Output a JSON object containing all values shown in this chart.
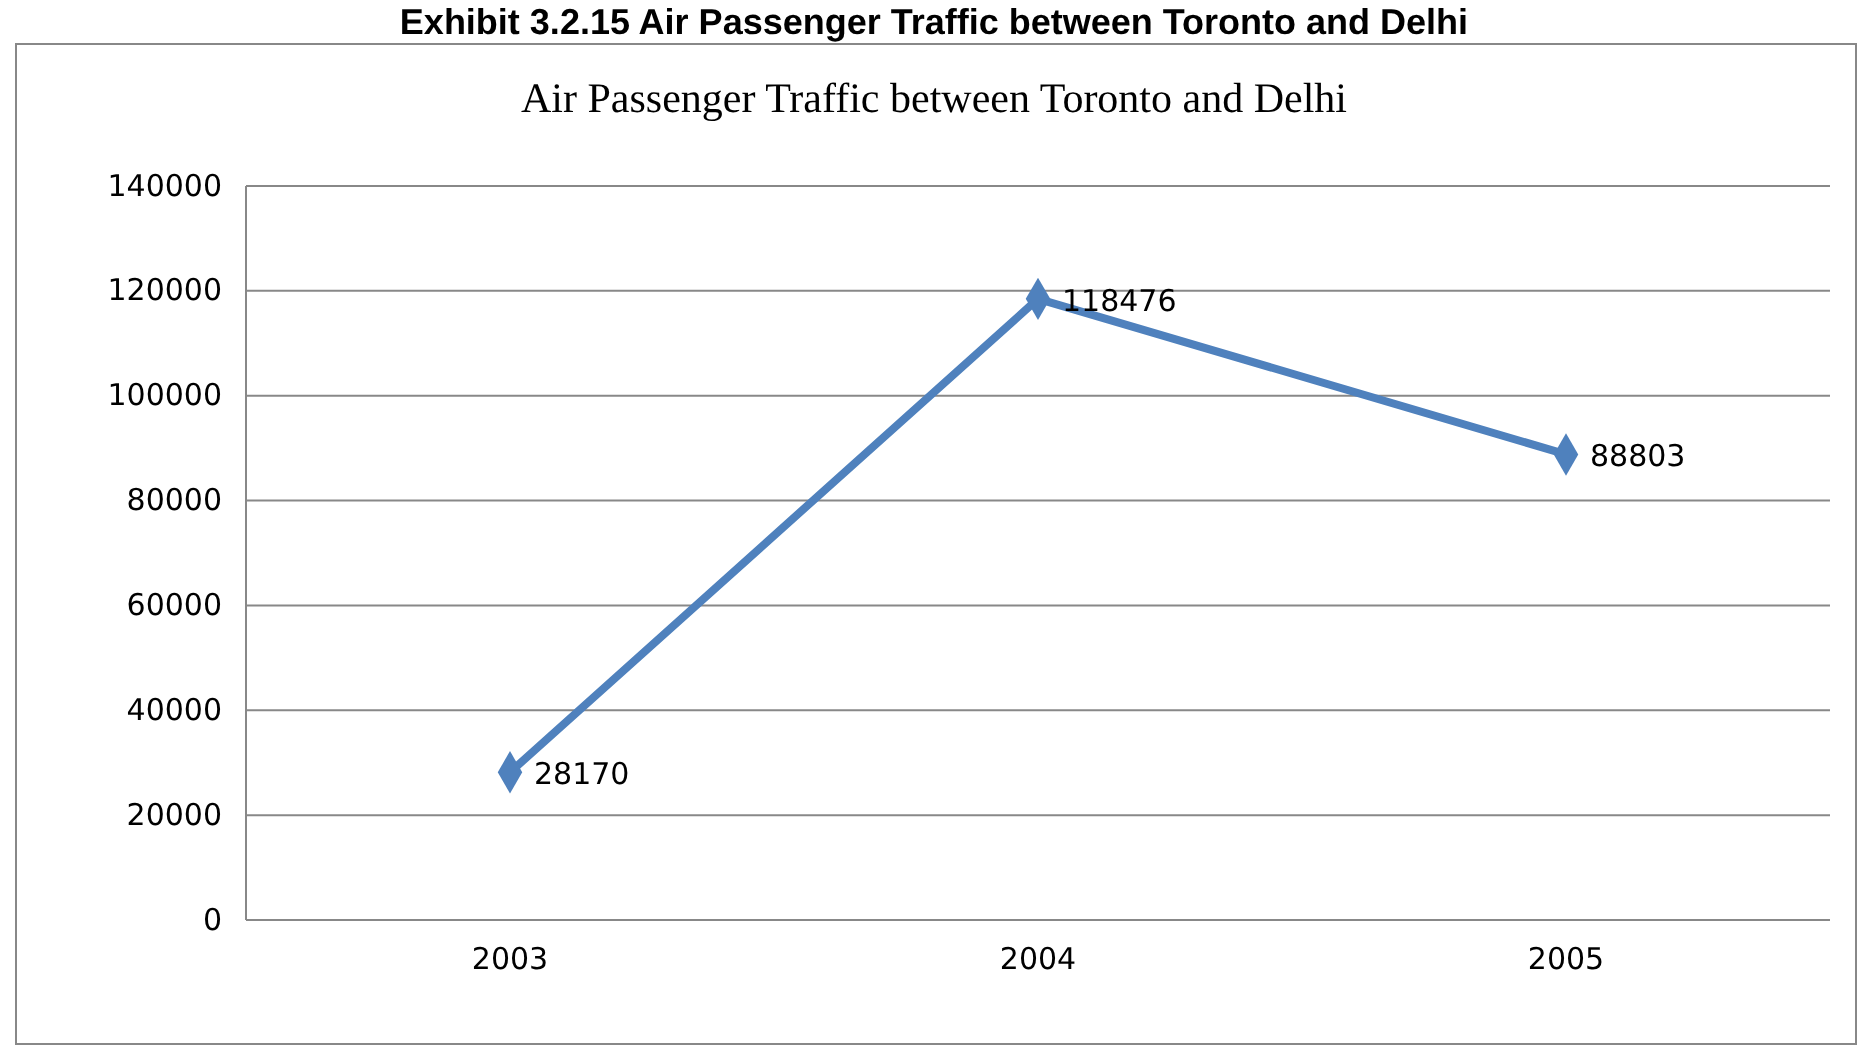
{
  "chart_data": {
    "type": "line",
    "title": "Exhibit 3.2.15 Air Passenger Traffic between Toronto and Delhi",
    "subtitle": "Air Passenger Traffic between Toronto and Delhi",
    "categories": [
      "2003",
      "2004",
      "2005"
    ],
    "series": [
      {
        "color": "#4f81bd",
        "values": [
          28170,
          118476,
          88803
        ]
      }
    ],
    "ylim": [
      0,
      140000
    ],
    "yticks": [
      0,
      20000,
      40000,
      60000,
      80000,
      100000,
      120000,
      140000
    ],
    "grid": "y",
    "marker": "diamond",
    "data_labels": true
  }
}
